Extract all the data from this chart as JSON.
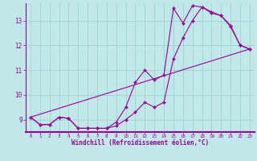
{
  "xlabel": "Windchill (Refroidissement éolien,°C)",
  "bg_color": "#c0e8e8",
  "line_color": "#990099",
  "grid_color": "#99cccc",
  "xlim": [
    -0.5,
    23.5
  ],
  "ylim": [
    8.5,
    13.7
  ],
  "yticks": [
    9,
    10,
    11,
    12,
    13
  ],
  "xticks": [
    0,
    1,
    2,
    3,
    4,
    5,
    6,
    7,
    8,
    9,
    10,
    11,
    12,
    13,
    14,
    15,
    16,
    17,
    18,
    19,
    20,
    21,
    22,
    23
  ],
  "line1_x": [
    0,
    1,
    2,
    3,
    4,
    5,
    6,
    7,
    8,
    9,
    10,
    11,
    12,
    13,
    14,
    15,
    16,
    17,
    18,
    19,
    20,
    21,
    22,
    23
  ],
  "line1_y": [
    9.1,
    8.8,
    8.8,
    9.1,
    9.05,
    8.65,
    8.65,
    8.65,
    8.65,
    8.75,
    9.0,
    9.3,
    9.7,
    9.5,
    9.7,
    11.45,
    12.3,
    13.0,
    13.55,
    13.35,
    13.2,
    12.8,
    12.0,
    11.85
  ],
  "line2_x": [
    0,
    1,
    2,
    3,
    4,
    5,
    6,
    7,
    8,
    9,
    10,
    11,
    12,
    13,
    14,
    15,
    16,
    17,
    18,
    19,
    20,
    21,
    22,
    23
  ],
  "line2_y": [
    9.1,
    8.8,
    8.8,
    9.1,
    9.05,
    8.65,
    8.65,
    8.65,
    8.65,
    8.9,
    9.5,
    10.5,
    11.0,
    10.6,
    10.8,
    13.5,
    12.9,
    13.6,
    13.55,
    13.3,
    13.2,
    12.75,
    12.0,
    11.85
  ],
  "line3_x": [
    0,
    23
  ],
  "line3_y": [
    9.1,
    11.85
  ]
}
